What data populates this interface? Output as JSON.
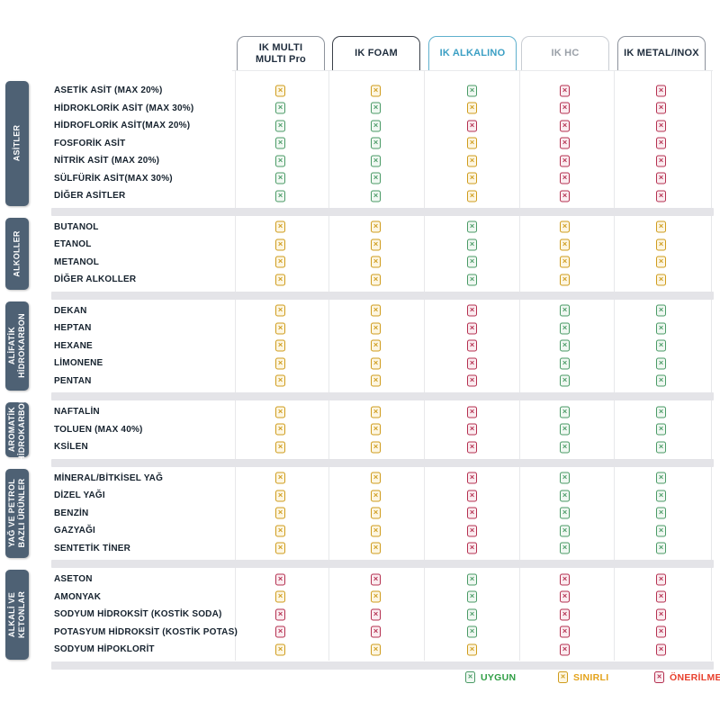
{
  "header": {
    "active_color": "#3b9fc4",
    "tabs": [
      {
        "id": "ik-multi",
        "label": "IK MULTI\nMULTI Pro",
        "style": "default"
      },
      {
        "id": "ik-foam",
        "label": "IK FOAM",
        "style": "strong"
      },
      {
        "id": "ik-alkalino",
        "label": "IK ALKALINO",
        "style": "active"
      },
      {
        "id": "ik-hc",
        "label": "IK HC",
        "style": "muted"
      },
      {
        "id": "ik-metal-inox",
        "label": "IK METAL/INOX",
        "style": "default"
      }
    ]
  },
  "chart_data": {
    "type": "table",
    "columns": [
      "IK MULTI / MULTI Pro",
      "IK FOAM",
      "IK ALKALINO",
      "IK HC",
      "IK METAL/INOX"
    ],
    "rating_meaning": {
      "G": "UYGUN",
      "Y": "SINIRLI",
      "R": "ÖNERİLMEZ"
    },
    "sections": [
      {
        "id": "asitler",
        "label": "ASİTLER",
        "rows": [
          {
            "label": "ASETİK ASİT (MAX 20%)",
            "ratings": [
              "Y",
              "Y",
              "G",
              "R",
              "R"
            ]
          },
          {
            "label": "HİDROKLORİK ASİT (MAX 30%)",
            "ratings": [
              "G",
              "G",
              "Y",
              "R",
              "R"
            ]
          },
          {
            "label": "HİDROFLORİK ASİT(MAX 20%)",
            "ratings": [
              "G",
              "G",
              "R",
              "R",
              "R"
            ]
          },
          {
            "label": "FOSFORİK ASİT",
            "ratings": [
              "G",
              "G",
              "Y",
              "R",
              "R"
            ]
          },
          {
            "label": "NİTRİK ASİT (MAX 20%)",
            "ratings": [
              "G",
              "G",
              "Y",
              "R",
              "R"
            ]
          },
          {
            "label": "SÜLFÜRİK ASİT(MAX 30%)",
            "ratings": [
              "G",
              "G",
              "Y",
              "R",
              "R"
            ]
          },
          {
            "label": "DİĞER ASİTLER",
            "ratings": [
              "G",
              "G",
              "Y",
              "R",
              "R"
            ]
          }
        ]
      },
      {
        "id": "alkoller",
        "label": "ALKOLLER",
        "rows": [
          {
            "label": "BUTANOL",
            "ratings": [
              "Y",
              "Y",
              "G",
              "Y",
              "Y"
            ]
          },
          {
            "label": "ETANOL",
            "ratings": [
              "Y",
              "Y",
              "G",
              "Y",
              "Y"
            ]
          },
          {
            "label": "METANOL",
            "ratings": [
              "Y",
              "Y",
              "G",
              "Y",
              "Y"
            ]
          },
          {
            "label": "DİĞER ALKOLLER",
            "ratings": [
              "Y",
              "Y",
              "G",
              "Y",
              "Y"
            ]
          }
        ]
      },
      {
        "id": "alifatik-hidrokarbon",
        "label": "ALİFATİK\nHİDROKARBON",
        "rows": [
          {
            "label": "DEKAN",
            "ratings": [
              "Y",
              "Y",
              "R",
              "G",
              "G"
            ]
          },
          {
            "label": "HEPTAN",
            "ratings": [
              "Y",
              "Y",
              "R",
              "G",
              "G"
            ]
          },
          {
            "label": "HEXANE",
            "ratings": [
              "Y",
              "Y",
              "R",
              "G",
              "G"
            ]
          },
          {
            "label": "LİMONENE",
            "ratings": [
              "Y",
              "Y",
              "R",
              "G",
              "G"
            ]
          },
          {
            "label": "PENTAN",
            "ratings": [
              "Y",
              "Y",
              "R",
              "G",
              "G"
            ]
          }
        ]
      },
      {
        "id": "aromatik-hidrokarbon",
        "label": "AROMATİK\nHİDROKARBON",
        "rows": [
          {
            "label": "NAFTALİN",
            "ratings": [
              "Y",
              "Y",
              "R",
              "G",
              "G"
            ]
          },
          {
            "label": "TOLUEN (MAX 40%)",
            "ratings": [
              "Y",
              "Y",
              "R",
              "G",
              "G"
            ]
          },
          {
            "label": "KSİLEN",
            "ratings": [
              "Y",
              "Y",
              "R",
              "G",
              "G"
            ]
          }
        ]
      },
      {
        "id": "yag-ve-petrol",
        "label": "YAĞ VE PETROL\nBAZLI ÜRÜNLER",
        "rows": [
          {
            "label": "MİNERAL/BİTKİSEL YAĞ",
            "ratings": [
              "Y",
              "Y",
              "R",
              "G",
              "G"
            ]
          },
          {
            "label": "DİZEL YAĞI",
            "ratings": [
              "Y",
              "Y",
              "R",
              "G",
              "G"
            ]
          },
          {
            "label": "BENZİN",
            "ratings": [
              "Y",
              "Y",
              "R",
              "G",
              "G"
            ]
          },
          {
            "label": "GAZYAĞI",
            "ratings": [
              "Y",
              "Y",
              "R",
              "G",
              "G"
            ]
          },
          {
            "label": "SENTETİK TİNER",
            "ratings": [
              "Y",
              "Y",
              "R",
              "G",
              "G"
            ]
          }
        ]
      },
      {
        "id": "alkali-ve-ketonlar",
        "label": "ALKALİ VE\nKETONLAR",
        "rows": [
          {
            "label": "ASETON",
            "ratings": [
              "R",
              "R",
              "G",
              "R",
              "R"
            ]
          },
          {
            "label": "AMONYAK",
            "ratings": [
              "Y",
              "Y",
              "G",
              "R",
              "R"
            ]
          },
          {
            "label": "SODYUM HİDROKSİT (KOSTİK SODA)",
            "ratings": [
              "R",
              "R",
              "G",
              "R",
              "R"
            ]
          },
          {
            "label": "POTASYUM HİDROKSİT (KOSTİK POTAS)",
            "ratings": [
              "R",
              "R",
              "G",
              "R",
              "R"
            ]
          },
          {
            "label": "SODYUM HİPOKLORİT",
            "ratings": [
              "Y",
              "Y",
              "Y",
              "R",
              "R"
            ]
          }
        ]
      }
    ]
  },
  "legend": {
    "code_names": {
      "G": "uygun",
      "Y": "sinirli",
      "R": "onerilmez"
    },
    "items": [
      {
        "code": "G",
        "label": "UYGUN"
      },
      {
        "code": "Y",
        "label": "SINIRLI"
      },
      {
        "code": "R",
        "label": "ÖNERİLMEZ"
      }
    ]
  },
  "colors": {
    "group_bar": "#4e6174",
    "G": {
      "icon": "#4a9a66",
      "text": "#2f9e44"
    },
    "Y": {
      "icon": "#cf9c1d",
      "text": "#e3a21a"
    },
    "R": {
      "icon": "#b43050",
      "text": "#e8402d"
    }
  }
}
